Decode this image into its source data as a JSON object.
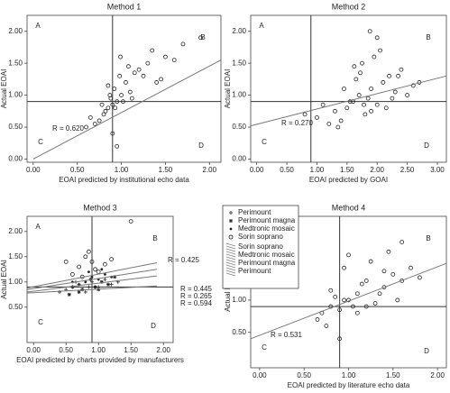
{
  "chart_data": [
    {
      "type": "scatter",
      "title": "Method 1",
      "xlabel": "EOAI predicted by institutional echo data",
      "ylabel": "Actual EOAI",
      "xlim": [
        -0.07,
        2.13
      ],
      "ylim": [
        -0.05,
        2.25
      ],
      "xticks": [
        {
          "value": 0,
          "label": "0.00"
        },
        {
          "value": 0.5,
          "label": "0.50"
        },
        {
          "value": 1,
          "label": "1.00"
        },
        {
          "value": 1.5,
          "label": "1.50"
        },
        {
          "value": 2,
          "label": "2.00"
        }
      ],
      "yticks": [
        {
          "value": 0,
          "label": "0.00"
        },
        {
          "value": 0.5,
          "label": "0.50"
        },
        {
          "value": 1,
          "label": "1.00"
        },
        {
          "value": 1.5,
          "label": "1.50"
        },
        {
          "value": 2,
          "label": "2.00"
        }
      ],
      "ref_x": 0.9,
      "ref_y": 0.9,
      "quadrants": [
        "A",
        "B",
        "C",
        "D"
      ],
      "series": [
        {
          "marker": "circle",
          "color": "#222",
          "x": [
            0.85,
            0.9,
            0.95,
            1.0,
            0.8,
            0.88,
            0.92,
            1.05,
            1.1,
            0.75,
            0.7,
            0.98,
            1.2,
            1.3,
            1.4,
            1.5,
            1.25,
            1.15,
            0.6,
            0.65,
            0.82,
            0.87,
            0.93,
            1.02,
            1.08,
            1.35,
            1.6,
            1.7,
            0.95,
            0.9,
            0.78,
            1.12,
            1.45,
            0.85,
            0.99,
            1.9
          ],
          "y": [
            0.8,
            0.85,
            0.9,
            1.0,
            0.7,
            0.95,
            1.1,
            1.2,
            1.05,
            0.6,
            0.55,
            1.3,
            1.4,
            1.5,
            1.2,
            1.6,
            1.3,
            1.35,
            0.5,
            0.65,
            0.75,
            1.0,
            0.8,
            0.9,
            1.45,
            1.7,
            1.55,
            1.8,
            0.2,
            0.4,
            0.85,
            0.95,
            1.25,
            1.15,
            1.6,
            1.9
          ]
        }
      ],
      "fit_lines": [
        {
          "x": [
            0,
            2.13
          ],
          "y": [
            0,
            1.55
          ],
          "color": "#777",
          "label": "R = 0.620"
        }
      ]
    },
    {
      "type": "scatter",
      "title": "Method 2",
      "xlabel": "EOAI predicted by GOAI",
      "ylabel": "Actual EOAI",
      "xlim": [
        -0.1,
        3.15
      ],
      "ylim": [
        -0.05,
        2.25
      ],
      "xticks": [
        {
          "value": 0,
          "label": "0.00"
        },
        {
          "value": 0.5,
          "label": "0.50"
        },
        {
          "value": 1,
          "label": "1.00"
        },
        {
          "value": 1.5,
          "label": "1.50"
        },
        {
          "value": 2,
          "label": "2.00"
        },
        {
          "value": 2.5,
          "label": "2.50"
        },
        {
          "value": 3,
          "label": "3.00"
        }
      ],
      "yticks": [
        {
          "value": 0,
          "label": "0.00"
        },
        {
          "value": 0.5,
          "label": "0.50"
        },
        {
          "value": 1,
          "label": "1.00"
        },
        {
          "value": 1.5,
          "label": "1.50"
        },
        {
          "value": 2,
          "label": "2.00"
        }
      ],
      "ref_x": 0.9,
      "ref_y": 0.9,
      "quadrants": [
        "A",
        "B",
        "C",
        "D"
      ],
      "series": [
        {
          "marker": "circle",
          "color": "#222",
          "x": [
            1.5,
            1.6,
            1.7,
            1.8,
            1.9,
            2.0,
            2.1,
            2.2,
            1.4,
            1.3,
            1.75,
            1.85,
            1.95,
            2.3,
            2.4,
            2.6,
            1.2,
            1.0,
            0.8,
            1.65,
            1.55,
            2.05,
            2.15,
            1.72,
            1.88,
            2.5,
            2.7,
            1.45,
            1.35,
            1.9,
            2.25,
            1.78,
            1.62,
            2.0,
            2.35,
            1.1
          ],
          "y": [
            0.8,
            0.9,
            1.0,
            0.7,
            1.1,
            0.85,
            1.2,
            1.3,
            0.6,
            0.75,
            1.5,
            0.95,
            1.6,
            1.05,
            1.4,
            1.15,
            0.55,
            0.65,
            0.7,
            1.25,
            0.9,
            1.7,
            0.8,
            1.35,
            2.0,
            1.0,
            1.2,
            1.1,
            0.5,
            0.75,
            0.95,
            0.85,
            1.45,
            1.9,
            1.3,
            0.85
          ]
        }
      ],
      "fit_lines": [
        {
          "x": [
            -0.1,
            3.15
          ],
          "y": [
            0.52,
            1.3
          ],
          "color": "#777",
          "label": "R = 0.270"
        }
      ]
    },
    {
      "type": "scatter",
      "title": "Method 3",
      "xlabel": "EOAI predicted by charts provided by manufacturers",
      "ylabel": "Actual EOAI",
      "xlim": [
        -0.1,
        2.15
      ],
      "ylim": [
        -0.2,
        2.3
      ],
      "xticks": [
        {
          "value": 0,
          "label": "0.00"
        },
        {
          "value": 0.5,
          "label": "0.50"
        },
        {
          "value": 1,
          "label": "1.00"
        },
        {
          "value": 1.5,
          "label": "1.50"
        },
        {
          "value": 2,
          "label": "2.00"
        }
      ],
      "yticks": [
        {
          "value": 0.5,
          "label": "0.50"
        },
        {
          "value": 1,
          "label": "1.00"
        },
        {
          "value": 1.5,
          "label": "1.50"
        },
        {
          "value": 2,
          "label": "2.00"
        }
      ],
      "ref_x": 0.9,
      "ref_y": 0.9,
      "quadrants": [
        "A",
        "B",
        "C",
        "D"
      ],
      "series": [
        {
          "name": "Perimount",
          "marker": "plus",
          "color": "#222",
          "x": [
            0.5,
            0.6,
            0.7,
            0.8,
            0.9,
            1.0,
            1.1,
            1.2,
            0.4,
            0.65,
            0.85,
            1.3
          ],
          "y": [
            0.85,
            0.9,
            0.95,
            0.8,
            1.0,
            0.9,
            1.05,
            0.95,
            0.8,
            1.0,
            0.9,
            1.0
          ]
        },
        {
          "name": "Perimount magna",
          "marker": "star",
          "color": "#222",
          "x": [
            0.55,
            0.75,
            0.95,
            1.05,
            1.15,
            0.7,
            0.88,
            1.25,
            0.6,
            1.0
          ],
          "y": [
            0.75,
            0.85,
            0.9,
            1.0,
            0.95,
            0.8,
            1.05,
            1.1,
            0.9,
            0.85
          ]
        },
        {
          "name": "Medtronic mosaic",
          "marker": "dot",
          "color": "#222",
          "x": [
            0.8,
            0.9,
            1.0,
            1.1,
            0.7,
            0.85,
            1.2,
            0.95,
            0.6,
            1.05
          ],
          "y": [
            1.0,
            1.1,
            1.05,
            1.15,
            0.95,
            1.2,
            1.1,
            0.9,
            1.0,
            1.25
          ]
        },
        {
          "name": "Sorin soprano",
          "marker": "circle",
          "color": "#222",
          "x": [
            0.7,
            0.8,
            0.9,
            1.0,
            1.1,
            0.85,
            0.95,
            1.2,
            0.6,
            0.75,
            1.5,
            0.5
          ],
          "y": [
            1.3,
            1.5,
            1.4,
            1.2,
            1.35,
            1.6,
            1.25,
            1.45,
            1.15,
            1.1,
            2.2,
            1.4
          ]
        }
      ],
      "fit_lines": [
        {
          "name": "Sorin soprano",
          "x": [
            -0.1,
            1.9
          ],
          "y": [
            0.88,
            1.38
          ],
          "color": "#777",
          "label": "R = 0.425"
        },
        {
          "name": "Medtronic mosaic",
          "x": [
            -0.1,
            1.9
          ],
          "y": [
            0.85,
            1.25
          ],
          "color": "#777",
          "label": "R = 0.445"
        },
        {
          "name": "Perimount magna",
          "x": [
            -0.1,
            1.9
          ],
          "y": [
            0.8,
            1.12
          ],
          "color": "#777",
          "label": "R = 0.265"
        },
        {
          "name": "Perimount",
          "x": [
            -0.1,
            1.9
          ],
          "y": [
            0.78,
            0.92
          ],
          "color": "#777",
          "label": "R = 0.594"
        }
      ]
    },
    {
      "type": "scatter",
      "title": "Method 4",
      "xlabel": "EOAI predicted by literature echo data",
      "ylabel": "Actual EOAI",
      "xlim": [
        -0.1,
        2.1
      ],
      "ylim": [
        -0.05,
        2.3
      ],
      "xticks": [
        {
          "value": 0,
          "label": "0.00"
        },
        {
          "value": 0.5,
          "label": "0.50"
        },
        {
          "value": 1,
          "label": "1.00"
        },
        {
          "value": 1.5,
          "label": "1.50"
        },
        {
          "value": 2,
          "label": "2.00"
        }
      ],
      "yticks": [
        {
          "value": 0.5,
          "label": "0.50"
        },
        {
          "value": 1,
          "label": "1.00"
        },
        {
          "value": 1.5,
          "label": "1.50"
        },
        {
          "value": 2,
          "label": "2.00"
        }
      ],
      "ref_x": 0.9,
      "ref_y": 0.9,
      "quadrants": [
        "A",
        "B",
        "C",
        "D"
      ],
      "series": [
        {
          "marker": "circle",
          "color": "#222",
          "x": [
            0.7,
            0.8,
            0.9,
            1.0,
            1.1,
            1.2,
            1.3,
            1.4,
            1.5,
            1.6,
            0.75,
            0.85,
            0.95,
            1.05,
            1.15,
            1.25,
            1.35,
            1.45,
            1.55,
            1.7,
            0.65,
            0.9,
            1.0,
            1.2,
            0.8,
            1.6,
            1.8,
            1.1,
            0.95,
            1.4
          ],
          "y": [
            0.8,
            0.9,
            0.85,
            1.0,
            1.1,
            1.3,
            0.95,
            1.2,
            1.4,
            1.3,
            0.6,
            1.05,
            1.5,
            0.9,
            1.25,
            1.6,
            1.1,
            1.75,
            1.0,
            1.5,
            0.7,
            0.4,
            1.7,
            0.9,
            1.15,
            1.9,
            1.35,
            0.8,
            1.0,
            1.45
          ]
        }
      ],
      "fit_lines": [
        {
          "x": [
            -0.1,
            2.1
          ],
          "y": [
            0.4,
            1.57
          ],
          "color": "#777",
          "label": "R = 0.531"
        }
      ]
    }
  ]
}
